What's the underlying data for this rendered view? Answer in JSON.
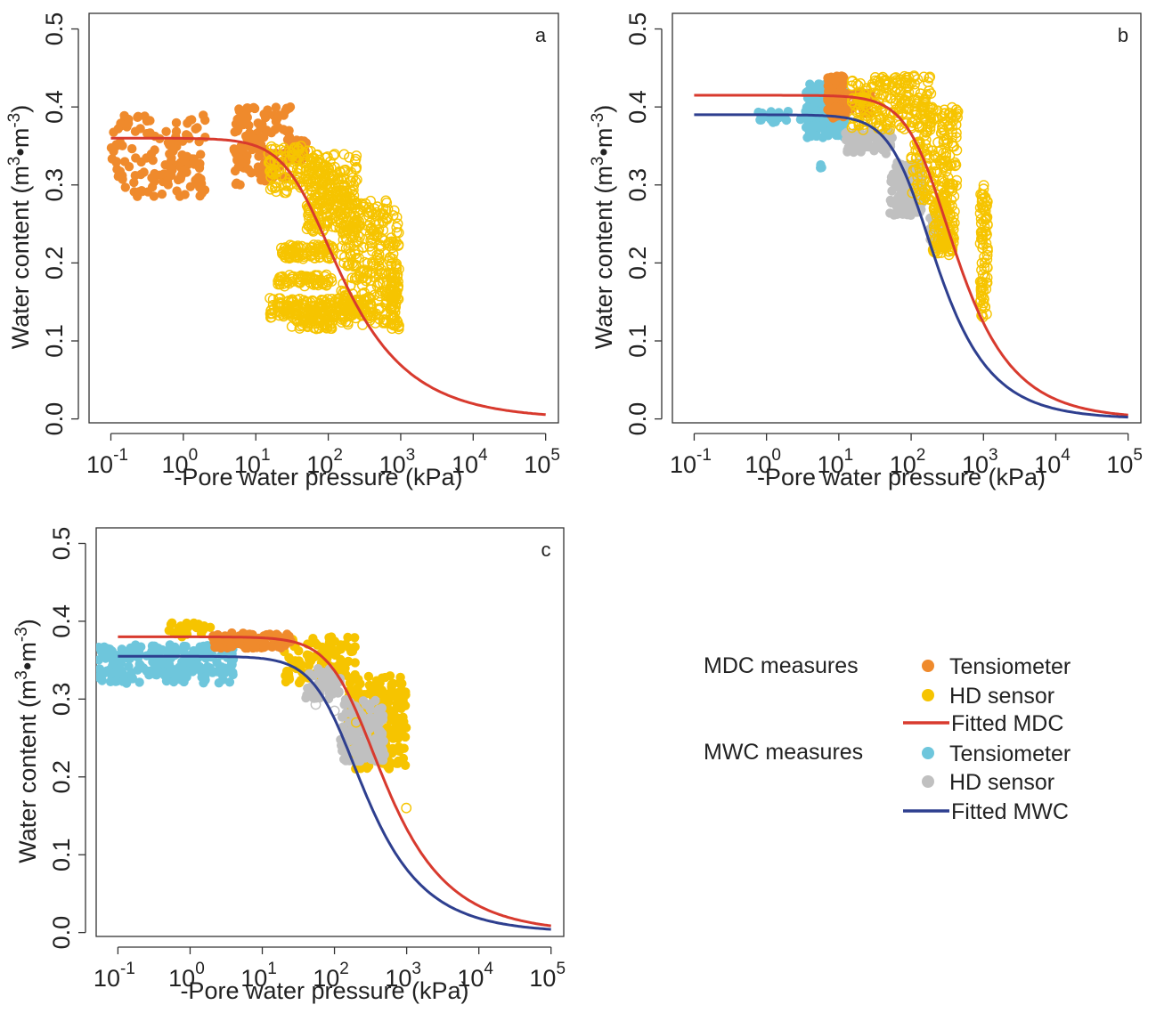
{
  "figure": {
    "legend": {
      "groups": [
        {
          "label": "MDC measures",
          "items": [
            {
              "label": "Tensiometer",
              "kind": "dot",
              "color": "#ef8a2c"
            },
            {
              "label": "HD sensor",
              "kind": "dot",
              "color": "#f6c400"
            },
            {
              "label": "Fitted MDC",
              "kind": "line",
              "color": "#d83a2e"
            }
          ]
        },
        {
          "label": "MWC measures",
          "items": [
            {
              "label": "Tensiometer",
              "kind": "dot",
              "color": "#6ec6dc"
            },
            {
              "label": "HD sensor",
              "kind": "dot",
              "color": "#c0c0c0"
            },
            {
              "label": "Fitted MWC",
              "kind": "line",
              "color": "#2e3f8f"
            }
          ]
        }
      ]
    }
  },
  "chart_data": [
    {
      "type": "scatter",
      "panel": "a",
      "xlabel": "-Pore water pressure (kPa)",
      "ylabel": "Water content (m3•m-3)",
      "ylabel_parts": [
        "Water content (m",
        "3",
        "•m",
        "-3",
        ")"
      ],
      "x_scale": "log",
      "xlim": [
        0.05,
        150000
      ],
      "ylim": [
        -0.005,
        0.52
      ],
      "x_ticks": [
        {
          "base": "10",
          "exp": "-1"
        },
        {
          "base": "10",
          "exp": "0"
        },
        {
          "base": "10",
          "exp": "1"
        },
        {
          "base": "10",
          "exp": "2"
        },
        {
          "base": "10",
          "exp": "3"
        },
        {
          "base": "10",
          "exp": "4"
        },
        {
          "base": "10",
          "exp": "5"
        }
      ],
      "y_ticks": [
        "0.0",
        "0.1",
        "0.2",
        "0.3",
        "0.4",
        "0.5"
      ],
      "grid": false,
      "series": [
        {
          "role": "fit",
          "color": "#d83a2e",
          "theta_s": 0.36,
          "theta_r": 0.0,
          "alpha": 0.02,
          "n": 1.55,
          "x_range": [
            0.1,
            100000
          ]
        },
        {
          "role": "points",
          "style": "filled",
          "color": "#ef8a2c",
          "clusters": [
            {
              "x": [
                0.1,
                2
              ],
              "y": [
                0.285,
                0.39
              ],
              "n": 140
            },
            {
              "x": [
                5,
                30
              ],
              "y": [
                0.3,
                0.4
              ],
              "n": 120
            },
            {
              "x": [
                25,
                50
              ],
              "y": [
                0.33,
                0.36
              ],
              "n": 30
            }
          ]
        },
        {
          "role": "points",
          "style": "open",
          "color": "#f6c400",
          "clusters": [
            {
              "x": [
                15,
                60
              ],
              "y": [
                0.29,
                0.35
              ],
              "n": 90
            },
            {
              "x": [
                50,
                250
              ],
              "y": [
                0.24,
                0.34
              ],
              "n": 260
            },
            {
              "x": [
                150,
                950
              ],
              "y": [
                0.12,
                0.28
              ],
              "n": 300
            },
            {
              "x": [
                20,
                120
              ],
              "y": [
                0.205,
                0.225
              ],
              "n": 90
            },
            {
              "x": [
                20,
                120
              ],
              "y": [
                0.17,
                0.185
              ],
              "n": 70
            },
            {
              "x": [
                15,
                400
              ],
              "y": [
                0.13,
                0.155
              ],
              "n": 220
            },
            {
              "x": [
                30,
                120
              ],
              "y": [
                0.115,
                0.13
              ],
              "n": 50
            },
            {
              "x": [
                700,
                950
              ],
              "y": [
                0.115,
                0.2
              ],
              "n": 60
            }
          ]
        }
      ]
    },
    {
      "type": "scatter",
      "panel": "b",
      "xlabel": "-Pore water pressure (kPa)",
      "ylabel": "Water content (m3•m-3)",
      "ylabel_parts": [
        "Water content (m",
        "3",
        "•m",
        "-3",
        ")"
      ],
      "x_scale": "log",
      "xlim": [
        0.05,
        150000
      ],
      "ylim": [
        -0.005,
        0.52
      ],
      "x_ticks": [
        {
          "base": "10",
          "exp": "-1"
        },
        {
          "base": "10",
          "exp": "0"
        },
        {
          "base": "10",
          "exp": "1"
        },
        {
          "base": "10",
          "exp": "2"
        },
        {
          "base": "10",
          "exp": "3"
        },
        {
          "base": "10",
          "exp": "4"
        },
        {
          "base": "10",
          "exp": "5"
        }
      ],
      "y_ticks": [
        "0.0",
        "0.1",
        "0.2",
        "0.3",
        "0.4",
        "0.5"
      ],
      "grid": false,
      "series": [
        {
          "role": "fit",
          "color": "#d83a2e",
          "theta_s": 0.415,
          "theta_r": 0.0,
          "alpha": 0.0055,
          "n": 1.7,
          "x_range": [
            0.1,
            100000
          ]
        },
        {
          "role": "fit",
          "color": "#2e3f8f",
          "theta_s": 0.39,
          "theta_r": 0.0,
          "alpha": 0.0095,
          "n": 1.75,
          "x_range": [
            0.1,
            100000
          ]
        },
        {
          "role": "points",
          "style": "filled",
          "color": "#6ec6dc",
          "clusters": [
            {
              "x": [
                3.5,
                12
              ],
              "y": [
                0.36,
                0.43
              ],
              "n": 160
            },
            {
              "x": [
                0.7,
                4
              ],
              "y": [
                0.38,
                0.395
              ],
              "n": 25
            },
            {
              "x": [
                4,
                6
              ],
              "y": [
                0.318,
                0.33
              ],
              "n": 3
            }
          ]
        },
        {
          "role": "points",
          "style": "filled",
          "color": "#ef8a2c",
          "clusters": [
            {
              "x": [
                7,
                12
              ],
              "y": [
                0.385,
                0.44
              ],
              "n": 140
            },
            {
              "x": [
                12,
                30
              ],
              "y": [
                0.39,
                0.42
              ],
              "n": 40
            }
          ]
        },
        {
          "role": "points",
          "style": "filled",
          "color": "#c0c0c0",
          "clusters": [
            {
              "x": [
                12,
                55
              ],
              "y": [
                0.34,
                0.37
              ],
              "n": 90
            },
            {
              "x": [
                50,
                150
              ],
              "y": [
                0.26,
                0.33
              ],
              "n": 120
            },
            {
              "x": [
                180,
                300
              ],
              "y": [
                0.22,
                0.26
              ],
              "n": 60
            }
          ]
        },
        {
          "role": "points",
          "style": "open",
          "color": "#f6c400",
          "clusters": [
            {
              "x": [
                15,
                200
              ],
              "y": [
                0.37,
                0.44
              ],
              "n": 200
            },
            {
              "x": [
                100,
                450
              ],
              "y": [
                0.28,
                0.4
              ],
              "n": 200
            },
            {
              "x": [
                200,
                400
              ],
              "y": [
                0.21,
                0.28
              ],
              "n": 120
            },
            {
              "x": [
                900,
                1150
              ],
              "y": [
                0.13,
                0.3
              ],
              "n": 90
            }
          ]
        }
      ]
    },
    {
      "type": "scatter",
      "panel": "c",
      "xlabel": "-Pore water pressure (kPa)",
      "ylabel": "Water content (m3•m-3)",
      "ylabel_parts": [
        "Water content (m",
        "3",
        "•m",
        "-3",
        ")"
      ],
      "x_scale": "log",
      "xlim": [
        0.05,
        150000
      ],
      "ylim": [
        -0.005,
        0.52
      ],
      "x_ticks": [
        {
          "base": "10",
          "exp": "-1"
        },
        {
          "base": "10",
          "exp": "0"
        },
        {
          "base": "10",
          "exp": "1"
        },
        {
          "base": "10",
          "exp": "2"
        },
        {
          "base": "10",
          "exp": "3"
        },
        {
          "base": "10",
          "exp": "4"
        },
        {
          "base": "10",
          "exp": "5"
        }
      ],
      "y_ticks": [
        "0.0",
        "0.1",
        "0.2",
        "0.3",
        "0.4",
        "0.5"
      ],
      "grid": false,
      "series": [
        {
          "role": "fit",
          "color": "#d83a2e",
          "theta_s": 0.38,
          "theta_r": 0.0,
          "alpha": 0.0055,
          "n": 1.6,
          "x_range": [
            0.1,
            100000
          ]
        },
        {
          "role": "fit",
          "color": "#2e3f8f",
          "theta_s": 0.355,
          "theta_r": 0.0,
          "alpha": 0.0095,
          "n": 1.65,
          "x_range": [
            0.1,
            100000
          ]
        },
        {
          "role": "points",
          "style": "filled",
          "color": "#6ec6dc",
          "clusters": [
            {
              "x": [
                0.05,
                4
              ],
              "y": [
                0.32,
                0.37
              ],
              "n": 220
            }
          ]
        },
        {
          "role": "points",
          "style": "filled",
          "color": "#f6c400",
          "clusters": [
            {
              "x": [
                0.5,
                2
              ],
              "y": [
                0.38,
                0.4
              ],
              "n": 25
            },
            {
              "x": [
                20,
                200
              ],
              "y": [
                0.32,
                0.38
              ],
              "n": 120
            },
            {
              "x": [
                150,
                1000
              ],
              "y": [
                0.21,
                0.33
              ],
              "n": 200
            }
          ]
        },
        {
          "role": "points",
          "style": "filled",
          "color": "#ef8a2c",
          "clusters": [
            {
              "x": [
                2,
                25
              ],
              "y": [
                0.365,
                0.385
              ],
              "n": 110
            }
          ]
        },
        {
          "role": "points",
          "style": "filled",
          "color": "#c0c0c0",
          "clusters": [
            {
              "x": [
                40,
                120
              ],
              "y": [
                0.3,
                0.34
              ],
              "n": 60
            },
            {
              "x": [
                120,
                500
              ],
              "y": [
                0.22,
                0.3
              ],
              "n": 140
            }
          ]
        },
        {
          "role": "points",
          "style": "open",
          "color": "#c0c0c0",
          "clusters": [
            {
              "x": [
                55,
                55
              ],
              "y": [
                0.293,
                0.293
              ],
              "n": 1
            },
            {
              "x": [
                100,
                100
              ],
              "y": [
                0.285,
                0.285
              ],
              "n": 1
            }
          ]
        },
        {
          "role": "points",
          "style": "open",
          "color": "#f6c400",
          "clusters": [
            {
              "x": [
                900,
                1000
              ],
              "y": [
                0.16,
                0.16
              ],
              "n": 1
            },
            {
              "x": [
                180,
                220
              ],
              "y": [
                0.27,
                0.27
              ],
              "n": 1
            }
          ]
        }
      ]
    }
  ]
}
